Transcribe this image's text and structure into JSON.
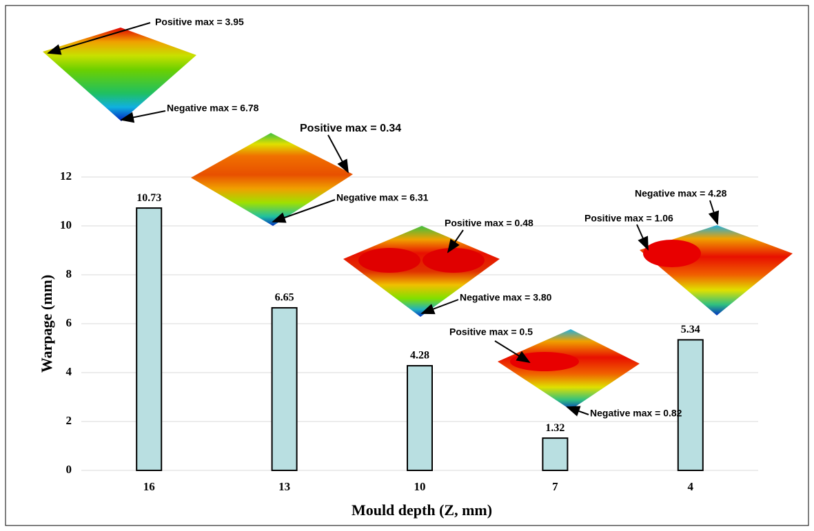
{
  "chart_data": {
    "type": "bar",
    "x_label": "Mould depth (Z, mm)",
    "y_label": "Warpage (mm)",
    "categories": [
      "16",
      "13",
      "10",
      "7",
      "4"
    ],
    "values": [
      10.73,
      6.65,
      4.28,
      1.32,
      5.34
    ],
    "color": "#b9dfe1",
    "ylim": [
      0,
      12
    ],
    "yticks": [
      0,
      2,
      4,
      6,
      8,
      10,
      12
    ],
    "grid": true,
    "annotations": [
      "Positive max = 3.95",
      "Negative max = 6.78",
      "Positive max = 0.34",
      "Negative max = 6.31",
      "Positive max = 0.48",
      "Negative max = 3.80",
      "Positive max = 0.5",
      "Negative max = 0.82",
      "Negative max = 4.28",
      "Positive max = 1.06"
    ]
  }
}
